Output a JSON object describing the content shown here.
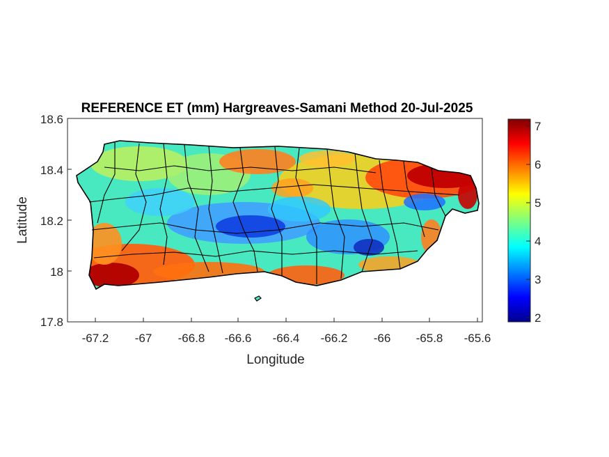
{
  "map": {
    "title": "REFERENCE ET (mm) Hargreaves-Samani Method  20-Jul-2025",
    "xlabel": "Longitude",
    "ylabel": "Latitude",
    "xlim": [
      -67.3,
      -65.58
    ],
    "ylim": [
      17.8,
      18.6
    ],
    "x_ticks": [
      "-67.2",
      "-67",
      "-66.8",
      "-66.6",
      "-66.4",
      "-66.2",
      "-66",
      "-65.8",
      "-65.6"
    ],
    "y_ticks": [
      "17.8",
      "18",
      "18.2",
      "18.4",
      "18.6"
    ],
    "region": "Puerto Rico",
    "colormap": "jet",
    "colorbar": {
      "range": [
        1.9,
        7.25
      ],
      "ticks": [
        "2",
        "3",
        "4",
        "5",
        "6",
        "7"
      ]
    },
    "colors": {
      "low": "#00008f",
      "mid": "#7fff7f",
      "high": "#800000",
      "outline": "#000000"
    }
  }
}
